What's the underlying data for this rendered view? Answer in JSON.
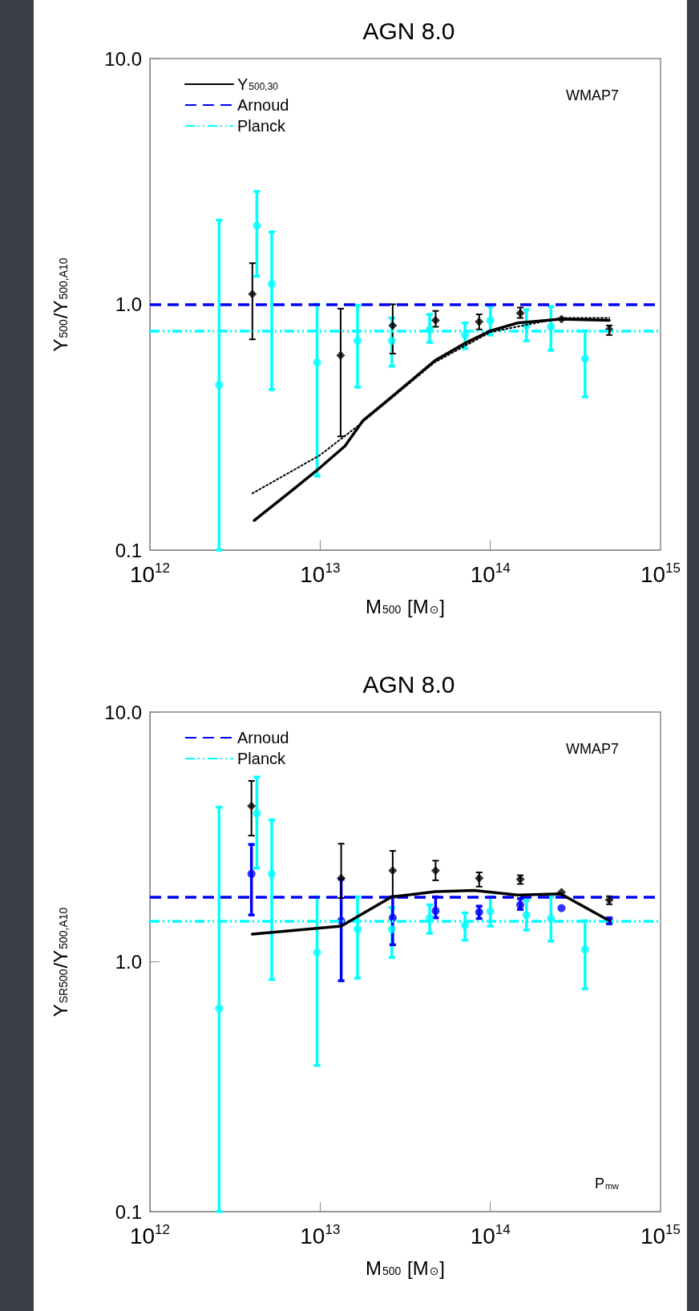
{
  "chart_data": [
    {
      "type": "scatter",
      "title": "AGN 8.0",
      "xlabel": "M$_{500}$ [M$_{⊙}$]",
      "ylabel": "Y$_{500}$/Y$_{500,A10}$",
      "log": "xy",
      "xlim": [
        1000000000000.0,
        1000000000000000.0
      ],
      "xticks": [
        {
          "value": 1000000000000.0,
          "label": "10$^{12}$"
        },
        {
          "value": 10000000000000.0,
          "label": "10$^{13}$"
        },
        {
          "value": 100000000000000.0,
          "label": "10$^{14}$"
        },
        {
          "value": 1000000000000000.0,
          "label": "10$^{15}$"
        }
      ],
      "ylim": [
        0.1,
        10
      ],
      "yticks": [
        {
          "value": 0.1,
          "label": "0.1"
        },
        {
          "value": 1,
          "label": "1.0"
        },
        {
          "value": 10,
          "label": "10.0"
        }
      ],
      "grid": false,
      "legend": "top left",
      "annotations": [
        "WMAP7"
      ],
      "ref_lines": [
        {
          "axis": "y",
          "value": 1.0,
          "label": "Arnoud",
          "color": "#0000ff",
          "line_style": "dashed"
        },
        {
          "axis": "y",
          "value": 0.78,
          "label": "Planck",
          "color": "#00ffff",
          "line_style": "dashdot"
        }
      ],
      "series": [
        {
          "color": "#00ffff",
          "marker": "circle",
          "x": [
            2550000000000.0,
            4250000000000.0,
            5200000000000.0,
            9600000000000.0,
            16600000000000.0,
            26400000000000.0,
            44000000000000.0,
            71000000000000.0,
            100000000000000.0,
            163000000000000.0,
            227000000000000.0,
            360000000000000.0
          ],
          "values": [
            0.47,
            2.09,
            1.21,
            0.58,
            0.71,
            0.71,
            0.79,
            0.75,
            0.86,
            0.82,
            0.81,
            0.6
          ],
          "errors": [
            [
              0.1,
              2.2
            ],
            [
              1.3,
              2.88
            ],
            [
              0.45,
              1.97
            ],
            [
              0.2,
              1.0
            ],
            [
              0.46,
              0.99
            ],
            [
              0.56,
              0.88
            ],
            [
              0.7,
              0.91
            ],
            [
              0.66,
              0.84
            ],
            [
              0.75,
              0.98
            ],
            [
              0.71,
              0.95
            ],
            [
              0.65,
              0.98
            ],
            [
              0.42,
              0.78
            ]
          ]
        },
        {
          "color": "#000000",
          "marker": "diamond",
          "x": [
            4000000000000.0,
            13200000000000.0,
            26700000000000.0,
            47700000000000.0,
            86000000000000.0,
            150000000000000.0,
            262000000000000.0,
            500000000000000.0
          ],
          "values": [
            1.1,
            0.62,
            0.82,
            0.86,
            0.85,
            0.92,
            0.87,
            0.79
          ],
          "errors": [
            [
              0.72,
              1.47
            ],
            [
              0.29,
              0.96
            ],
            [
              0.63,
              1.0
            ],
            [
              0.81,
              0.94
            ],
            [
              0.79,
              0.91
            ],
            [
              0.88,
              0.97
            ],
            null,
            [
              0.75,
              0.82
            ]
          ]
        },
        {
          "type": "line",
          "color": "#000000",
          "marker": "none",
          "line_style": "dotted",
          "x": [
            4000000000000.0,
            9950000000000.0,
            16200000000000.0,
            47000000000000.0,
            100000000000000.0,
            260000000000000.0,
            500000000000000.0
          ],
          "values": [
            0.17,
            0.243,
            0.315,
            0.58,
            0.77,
            0.88,
            0.88
          ]
        },
        {
          "name": "Y$_{500,30}$",
          "type": "line",
          "color": "#000000",
          "marker": "none",
          "line_style": "solid",
          "x": [
            4100000000000.0,
            6700000000000.0,
            9500000000000.0,
            14000000000000.0,
            17900000000000.0,
            26400000000000.0,
            47200000000000.0,
            69800000000000.0,
            100000000000000.0,
            145000000000000.0,
            259000000000000.0,
            500000000000000.0
          ],
          "values": [
            0.132,
            0.173,
            0.21,
            0.265,
            0.337,
            0.42,
            0.59,
            0.69,
            0.78,
            0.84,
            0.87,
            0.86
          ]
        }
      ]
    },
    {
      "type": "scatter",
      "title": "AGN 8.0",
      "xlabel": "M$_{500}$ [M$_{⊙}$]",
      "ylabel": "Y$_{SR500}$/Y$_{500,A10}$",
      "log": "xy",
      "xlim": [
        1000000000000.0,
        1000000000000000.0
      ],
      "xticks": [
        {
          "value": 1000000000000.0,
          "label": "10$^{12}$"
        },
        {
          "value": 10000000000000.0,
          "label": "10$^{13}$"
        },
        {
          "value": 100000000000000.0,
          "label": "10$^{14}$"
        },
        {
          "value": 1000000000000000.0,
          "label": "10$^{15}$"
        }
      ],
      "ylim": [
        0.1,
        10
      ],
      "yticks": [
        {
          "value": 0.1,
          "label": "0.1"
        },
        {
          "value": 1,
          "label": "1.0"
        },
        {
          "value": 10,
          "label": "10.0"
        }
      ],
      "grid": false,
      "legend": "top left",
      "annotations": [
        "WMAP7",
        "P$_{mw}$"
      ],
      "ref_lines": [
        {
          "axis": "y",
          "value": 1.82,
          "label": "Arnoud",
          "color": "#0000ff",
          "line_style": "dashed"
        },
        {
          "axis": "y",
          "value": 1.46,
          "label": "Planck",
          "color": "#00ffff",
          "line_style": "dashdot"
        }
      ],
      "series": [
        {
          "color": "#00ffff",
          "marker": "circle",
          "x": [
            2550000000000.0,
            4250000000000.0,
            5200000000000.0,
            9600000000000.0,
            16600000000000.0,
            26400000000000.0,
            44000000000000.0,
            71000000000000.0,
            100000000000000.0,
            163000000000000.0,
            227000000000000.0,
            360000000000000.0
          ],
          "values": [
            0.65,
            3.93,
            2.25,
            1.09,
            1.35,
            1.35,
            1.5,
            1.4,
            1.59,
            1.54,
            1.49,
            1.12
          ],
          "errors": [
            [
              0.1,
              4.16
            ],
            [
              2.37,
              5.49
            ],
            [
              0.85,
              3.7
            ],
            [
              0.385,
              1.82
            ],
            [
              0.86,
              1.82
            ],
            [
              1.04,
              1.65
            ],
            [
              1.3,
              1.69
            ],
            [
              1.22,
              1.57
            ],
            [
              1.39,
              1.82
            ],
            [
              1.34,
              1.76
            ],
            [
              1.21,
              1.82
            ],
            [
              0.78,
              1.46
            ]
          ]
        },
        {
          "color": "#0000ff",
          "marker": "circle",
          "x": [
            3950000000000.0,
            13300000000000.0,
            26700000000000.0,
            47700000000000.0,
            86000000000000.0,
            150000000000000.0,
            262000000000000.0,
            500000000000000.0
          ],
          "values": [
            2.25,
            1.46,
            1.5,
            1.6,
            1.58,
            1.69,
            1.64,
            1.46
          ],
          "errors": [
            [
              1.54,
              2.95
            ],
            [
              0.84,
              2.14
            ],
            [
              1.17,
              1.82
            ],
            [
              1.5,
              1.82
            ],
            [
              1.49,
              1.67
            ],
            [
              1.62,
              1.79
            ],
            null,
            [
              1.42,
              1.5
            ]
          ]
        },
        {
          "color": "#000000",
          "marker": "diamond",
          "x": [
            3950000000000.0,
            13300000000000.0,
            26700000000000.0,
            47700000000000.0,
            86000000000000.0,
            150000000000000.0,
            262000000000000.0,
            500000000000000.0
          ],
          "values": [
            4.2,
            2.16,
            2.32,
            2.32,
            2.16,
            2.14,
            1.9,
            1.77
          ],
          "errors": [
            [
              3.2,
              5.3
            ],
            [
              1.8,
              2.97
            ],
            [
              1.82,
              2.78
            ],
            [
              2.12,
              2.54
            ],
            [
              2.0,
              2.28
            ],
            [
              2.05,
              2.22
            ],
            null,
            [
              1.7,
              1.83
            ]
          ]
        },
        {
          "type": "line",
          "color": "#000000",
          "marker": "none",
          "line_style": "solid",
          "x": [
            4000000000000.0,
            13300000000000.0,
            26300000000000.0,
            47400000000000.0,
            80700000000000.0,
            145000000000000.0,
            259000000000000.0,
            500000000000000.0
          ],
          "values": [
            1.29,
            1.39,
            1.82,
            1.91,
            1.93,
            1.85,
            1.87,
            1.46
          ]
        }
      ]
    }
  ]
}
